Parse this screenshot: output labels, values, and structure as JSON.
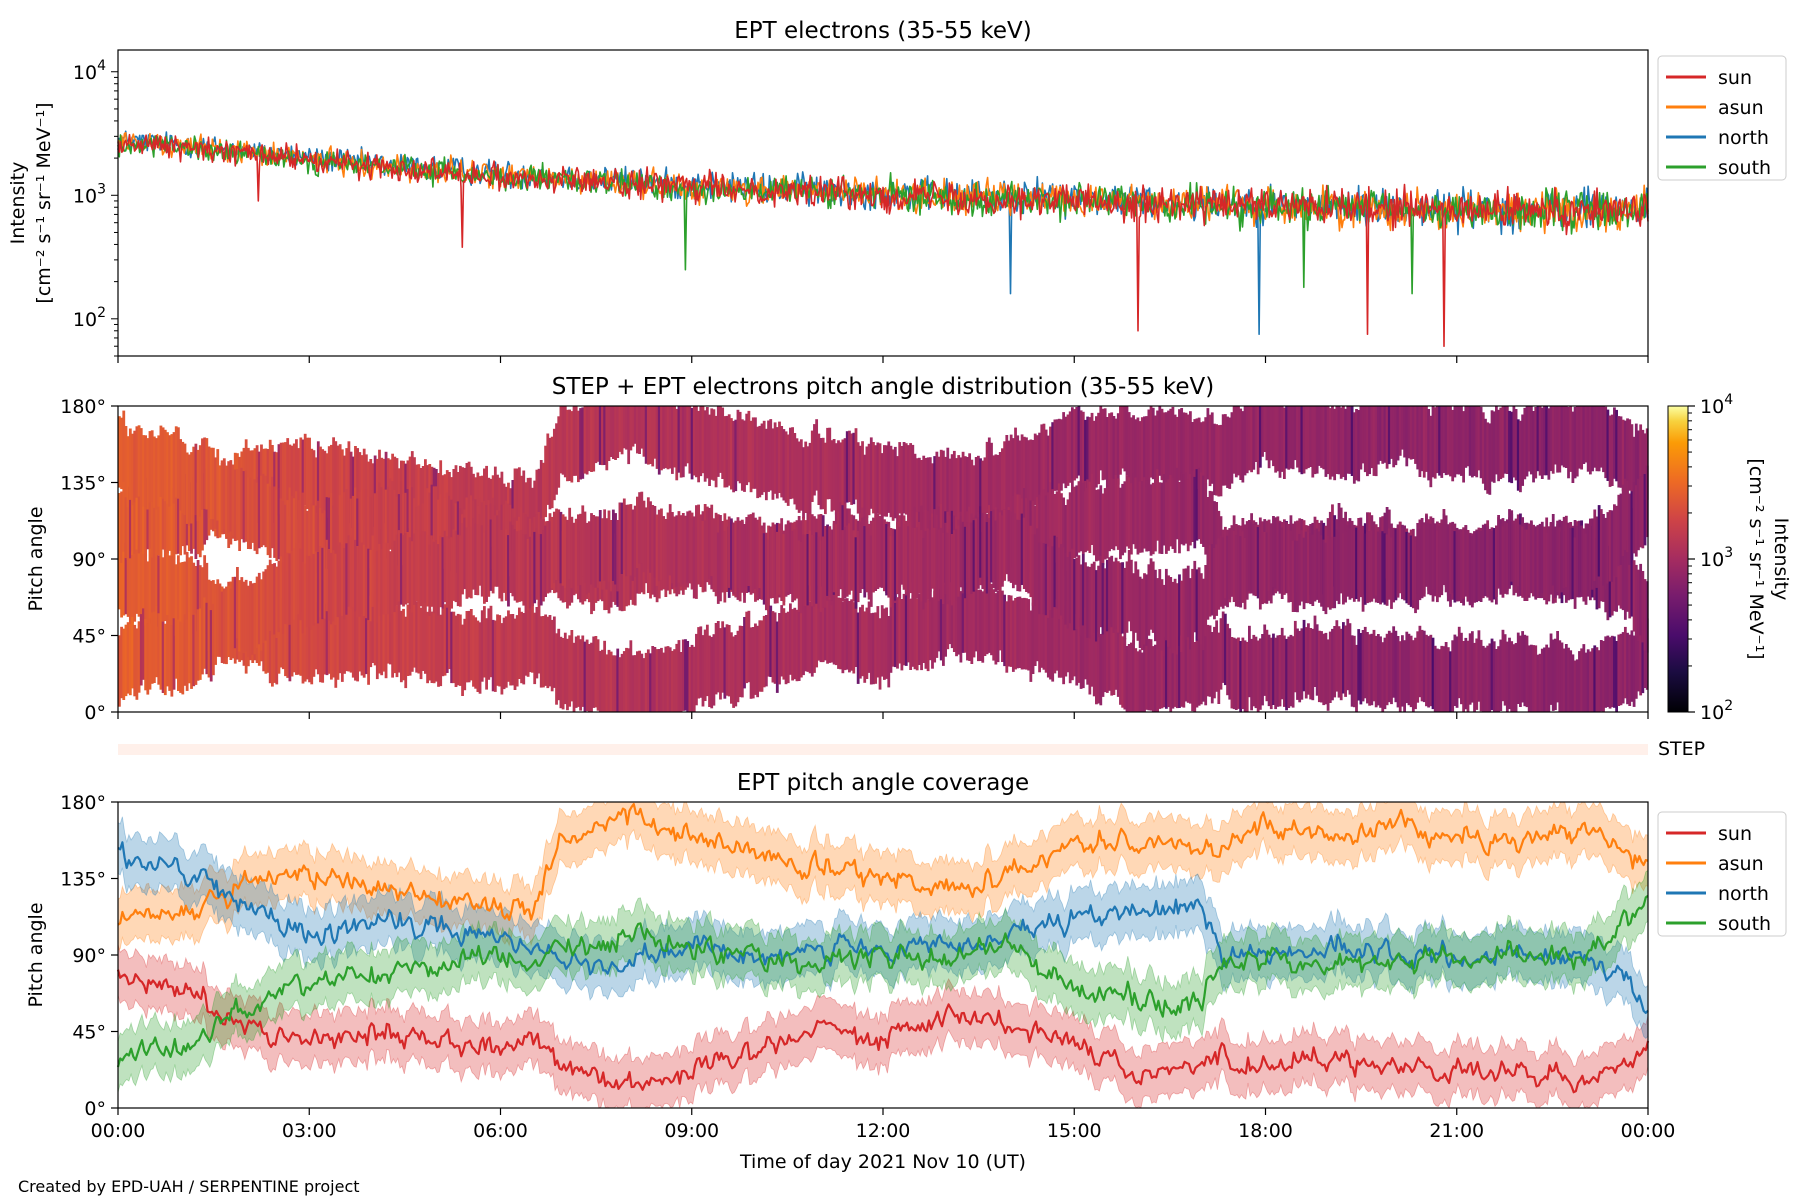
{
  "figure": {
    "credit": "Created by EPD-UAH / SERPENTINE project",
    "xlabel": "Time of day 2021 Nov 10 (UT)",
    "x_ticks": [
      "00:00",
      "03:00",
      "06:00",
      "09:00",
      "12:00",
      "15:00",
      "18:00",
      "21:00",
      "00:00"
    ]
  },
  "colors": {
    "sun": "#d62728",
    "asun": "#ff7f0e",
    "north": "#1f77b4",
    "south": "#2ca02c",
    "step_bar": "#fff0ea"
  },
  "chart_data": [
    {
      "type": "line",
      "panel": "top",
      "title": "EPT electrons (35-55 keV)",
      "ylabel_line1": "Intensity",
      "ylabel_line2": "[cm⁻² s⁻¹ sr⁻¹ MeV⁻¹]",
      "yscale": "log",
      "ylim": [
        50,
        15000
      ],
      "y_ticks": [
        {
          "base": "10",
          "exp": "2",
          "value": 100
        },
        {
          "base": "10",
          "exp": "3",
          "value": 1000
        },
        {
          "base": "10",
          "exp": "4",
          "value": 10000
        }
      ],
      "xlim_hours": [
        0,
        24
      ],
      "legend": [
        "sun",
        "asun",
        "north",
        "south"
      ],
      "legend_position": "right",
      "series": [
        {
          "name": "north",
          "x_hours": [
            0,
            1,
            2,
            3,
            4,
            5,
            6,
            7,
            8,
            9,
            10,
            11,
            12,
            13,
            14,
            15,
            16,
            17,
            18,
            19,
            20,
            21,
            22,
            23,
            24
          ],
          "values": [
            2800,
            2600,
            2300,
            2000,
            1800,
            1650,
            1500,
            1400,
            1300,
            1200,
            1150,
            1100,
            1050,
            1000,
            980,
            950,
            900,
            880,
            850,
            820,
            800,
            780,
            760,
            760,
            800
          ]
        },
        {
          "name": "asun",
          "x_hours": [
            0,
            1,
            2,
            3,
            4,
            5,
            6,
            7,
            8,
            9,
            10,
            11,
            12,
            13,
            14,
            15,
            16,
            17,
            18,
            19,
            20,
            21,
            22,
            23,
            24
          ],
          "values": [
            2700,
            2500,
            2250,
            1950,
            1750,
            1600,
            1450,
            1350,
            1250,
            1180,
            1120,
            1080,
            1020,
            980,
            950,
            920,
            880,
            860,
            830,
            800,
            780,
            760,
            750,
            750,
            780
          ]
        },
        {
          "name": "south",
          "x_hours": [
            0,
            1,
            2,
            3,
            4,
            5,
            6,
            7,
            8,
            9,
            10,
            11,
            12,
            13,
            14,
            15,
            16,
            17,
            18,
            19,
            20,
            21,
            22,
            23,
            24
          ],
          "values": [
            2600,
            2400,
            2150,
            1900,
            1700,
            1550,
            1400,
            1300,
            1220,
            1150,
            1100,
            1050,
            1000,
            960,
            930,
            900,
            860,
            840,
            810,
            790,
            770,
            750,
            740,
            740,
            770
          ]
        },
        {
          "name": "sun",
          "x_hours": [
            0,
            1,
            2,
            3,
            4,
            5,
            6,
            7,
            8,
            9,
            10,
            11,
            12,
            13,
            14,
            15,
            16,
            17,
            18,
            19,
            20,
            21,
            22,
            23,
            24
          ],
          "values": [
            2650,
            2450,
            2200,
            1920,
            1720,
            1580,
            1420,
            1330,
            1240,
            1170,
            1110,
            1070,
            1010,
            970,
            940,
            910,
            870,
            850,
            820,
            795,
            775,
            755,
            745,
            745,
            775
          ]
        }
      ],
      "dips": [
        {
          "series": "sun",
          "x_hours": 2.2,
          "value": 900
        },
        {
          "series": "sun",
          "x_hours": 5.4,
          "value": 380
        },
        {
          "series": "south",
          "x_hours": 8.9,
          "value": 250
        },
        {
          "series": "north",
          "x_hours": 14.0,
          "value": 160
        },
        {
          "series": "sun",
          "x_hours": 16.0,
          "value": 80
        },
        {
          "series": "north",
          "x_hours": 17.9,
          "value": 75
        },
        {
          "series": "south",
          "x_hours": 18.6,
          "value": 180
        },
        {
          "series": "sun",
          "x_hours": 19.6,
          "value": 75
        },
        {
          "series": "south",
          "x_hours": 20.3,
          "value": 160
        },
        {
          "series": "sun",
          "x_hours": 20.8,
          "value": 60
        }
      ]
    },
    {
      "type": "heatmap",
      "panel": "middle",
      "title": "STEP + EPT electrons pitch angle distribution (35-55 keV)",
      "ylabel": "Pitch angle",
      "ylim": [
        0,
        180
      ],
      "y_ticks": [
        "0°",
        "45°",
        "90°",
        "135°",
        "180°"
      ],
      "xlim_hours": [
        0,
        24
      ],
      "colorbar": {
        "label_line1": "Intensity",
        "label_line2": "[cm⁻² s⁻¹ sr⁻¹ MeV⁻¹]",
        "scale": "log",
        "range": [
          100,
          10000
        ],
        "colormap": "inferno",
        "ticks": [
          {
            "base": "10",
            "exp": "2"
          },
          {
            "base": "10",
            "exp": "3"
          },
          {
            "base": "10",
            "exp": "4"
          }
        ]
      }
    },
    {
      "type": "bar",
      "panel": "step",
      "label": "STEP"
    },
    {
      "type": "area",
      "panel": "bottom",
      "title": "EPT pitch angle coverage",
      "ylabel": "Pitch angle",
      "ylim": [
        0,
        180
      ],
      "y_ticks": [
        "0°",
        "45°",
        "90°",
        "135°",
        "180°"
      ],
      "xlim_hours": [
        0,
        24
      ],
      "legend": [
        "sun",
        "asun",
        "north",
        "south"
      ],
      "legend_position": "right",
      "band_halfwidth_deg": 15,
      "series": [
        {
          "name": "sun",
          "x_hours": [
            0,
            1,
            2,
            3,
            4,
            5,
            6,
            6.5,
            7,
            8,
            9,
            10,
            11,
            12,
            13,
            14,
            15,
            16,
            17,
            17.3,
            18,
            19,
            20,
            21,
            22,
            23,
            24
          ],
          "values": [
            75,
            70,
            50,
            40,
            45,
            40,
            35,
            45,
            25,
            15,
            20,
            35,
            50,
            40,
            55,
            50,
            40,
            20,
            25,
            30,
            25,
            30,
            25,
            20,
            20,
            15,
            35
          ]
        },
        {
          "name": "asun",
          "x_hours": [
            0,
            1,
            2,
            3,
            4,
            5,
            6,
            6.5,
            7,
            8,
            9,
            10,
            11,
            12,
            13,
            14,
            15,
            16,
            17,
            17.3,
            18,
            19,
            20,
            21,
            22,
            23,
            24
          ],
          "values": [
            110,
            115,
            130,
            140,
            130,
            125,
            120,
            115,
            160,
            170,
            160,
            150,
            140,
            135,
            130,
            140,
            155,
            160,
            150,
            155,
            165,
            160,
            165,
            160,
            155,
            165,
            145
          ]
        },
        {
          "name": "north",
          "x_hours": [
            0,
            1,
            2,
            3,
            4,
            5,
            6,
            6.5,
            7,
            8,
            9,
            10,
            11,
            12,
            13,
            14,
            15,
            16,
            17,
            17.3,
            18,
            19,
            20,
            21,
            22,
            23,
            24
          ],
          "values": [
            150,
            140,
            120,
            100,
            110,
            105,
            100,
            95,
            90,
            85,
            95,
            90,
            95,
            90,
            95,
            100,
            110,
            115,
            120,
            90,
            90,
            95,
            90,
            88,
            92,
            90,
            60
          ]
        },
        {
          "name": "south",
          "x_hours": [
            0,
            1,
            2,
            3,
            4,
            5,
            6,
            6.5,
            7,
            8,
            9,
            10,
            11,
            12,
            13,
            14,
            15,
            16,
            17,
            17.3,
            18,
            19,
            20,
            21,
            22,
            23,
            24
          ],
          "values": [
            30,
            35,
            60,
            75,
            80,
            85,
            90,
            85,
            95,
            100,
            95,
            90,
            85,
            90,
            88,
            95,
            70,
            65,
            60,
            85,
            88,
            85,
            85,
            88,
            90,
            88,
            120
          ]
        }
      ]
    }
  ]
}
